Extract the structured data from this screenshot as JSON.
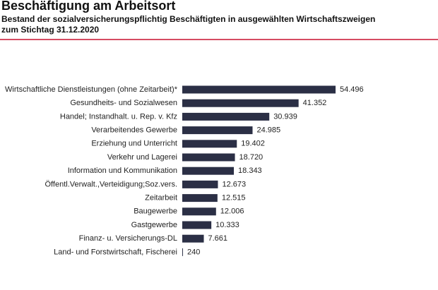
{
  "chart_data": {
    "type": "barh",
    "title": "Beschäftigung am Arbeitsort",
    "subtitle": [
      "Bestand der sozialversicherungspflichtig Beschäftigten in ausgewählten Wirtschaftszweigen",
      "zum Stichtag 31.12.2020"
    ],
    "categories": [
      "Wirtschaftliche Dienstleistungen (ohne Zeitarbeit)*",
      "Gesundheits- und Sozialwesen",
      "Handel; Instandhalt. u. Rep. v. Kfz",
      "Verarbeitendes Gewerbe",
      "Erziehung und Unterricht",
      "Verkehr und Lagerei",
      "Information und Kommunikation",
      "Öffentl.Verwalt.,Verteidigung;Soz.vers.",
      "Zeitarbeit",
      "Baugewerbe",
      "Gastgewerbe",
      "Finanz- u. Versicherungs-DL",
      "Land- und Forstwirtschaft, Fischerei"
    ],
    "values": [
      54496,
      41352,
      30939,
      24985,
      19402,
      18720,
      18343,
      12673,
      12515,
      12006,
      10333,
      7661,
      240
    ],
    "value_labels": [
      "54.496",
      "41.352",
      "30.939",
      "24.985",
      "19.402",
      "18.720",
      "18.343",
      "12.673",
      "12.515",
      "12.006",
      "10.333",
      "7.661",
      "240"
    ],
    "color": "#2b2f45"
  }
}
